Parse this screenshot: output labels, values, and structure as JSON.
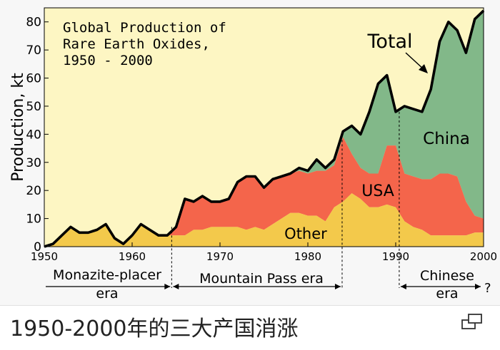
{
  "caption": "1950-2000年的三大产国消涨",
  "colors": {
    "background": "#fdf6c3",
    "other": "#f3c94b",
    "usa": "#f4654b",
    "china": "#82b889",
    "total_line": "#000000"
  },
  "chart_data": {
    "type": "area",
    "title_lines": [
      "Global Production of",
      "Rare Earth Oxides,",
      "1950  -  2000"
    ],
    "xlabel": "",
    "ylabel": "Production, kt",
    "xlim": [
      1950,
      2000
    ],
    "ylim": [
      0,
      85
    ],
    "xticks": [
      1950,
      1960,
      1970,
      1980,
      1990,
      2000
    ],
    "xtick_labels": [
      "1950",
      "1960",
      "1970",
      "1980",
      "1990",
      "2000"
    ],
    "yticks": [
      0,
      10,
      20,
      30,
      40,
      50,
      60,
      70,
      80
    ],
    "ytick_labels": [
      "0",
      "10",
      "20",
      "30",
      "40",
      "50",
      "60",
      "70",
      "80"
    ],
    "x": [
      1950,
      1951,
      1952,
      1953,
      1954,
      1955,
      1956,
      1957,
      1958,
      1959,
      1960,
      1961,
      1962,
      1963,
      1964,
      1965,
      1966,
      1967,
      1968,
      1969,
      1970,
      1971,
      1972,
      1973,
      1974,
      1975,
      1976,
      1977,
      1978,
      1979,
      1980,
      1981,
      1982,
      1983,
      1984,
      1985,
      1986,
      1987,
      1988,
      1989,
      1990,
      1991,
      1992,
      1993,
      1994,
      1995,
      1996,
      1997,
      1998,
      1999,
      2000
    ],
    "series": [
      {
        "name": "Other",
        "label": "Other",
        "values": [
          0,
          1,
          4,
          7,
          5,
          5,
          6,
          8,
          3,
          1,
          4,
          8,
          6,
          4,
          4,
          4,
          4,
          6,
          6,
          7,
          7,
          7,
          7,
          6,
          7,
          6,
          8,
          10,
          12,
          12,
          11,
          11,
          9,
          14,
          16,
          19,
          17,
          14,
          14,
          15,
          14,
          9,
          7,
          6,
          4,
          4,
          4,
          4,
          4,
          5,
          5
        ]
      },
      {
        "name": "USA",
        "label": "USA",
        "values": [
          0,
          0,
          0,
          0,
          0,
          0,
          0,
          0,
          0,
          0,
          0,
          0,
          0,
          0,
          0,
          3,
          13,
          10,
          12,
          9,
          9,
          10,
          16,
          19,
          18,
          15,
          16,
          15,
          14,
          15,
          15,
          16,
          18,
          15,
          23,
          14,
          11,
          12,
          12,
          21,
          22,
          17,
          18,
          18,
          20,
          22,
          22,
          21,
          12,
          6,
          5
        ]
      },
      {
        "name": "China",
        "label": "China",
        "values": [
          0,
          0,
          0,
          0,
          0,
          0,
          0,
          0,
          0,
          0,
          0,
          0,
          0,
          0,
          0,
          0,
          0,
          0,
          0,
          0,
          0,
          0,
          0,
          0,
          0,
          0,
          0,
          0,
          0,
          1,
          1,
          4,
          1,
          2,
          2,
          10,
          12,
          22,
          32,
          25,
          12,
          24,
          24,
          24,
          32,
          47,
          54,
          52,
          53,
          70,
          74
        ]
      }
    ],
    "total": {
      "label": "Total",
      "values": [
        0,
        1,
        4,
        7,
        5,
        5,
        6,
        8,
        3,
        1,
        4,
        8,
        6,
        4,
        4,
        7,
        17,
        16,
        18,
        16,
        16,
        17,
        23,
        25,
        25,
        21,
        24,
        25,
        26,
        28,
        27,
        31,
        28,
        31,
        41,
        43,
        40,
        48,
        58,
        61,
        48,
        50,
        49,
        48,
        56,
        73,
        80,
        77,
        69,
        81,
        84
      ]
    },
    "eras": [
      {
        "label": "Monazite-placer era",
        "lines": [
          "Monazite-placer",
          "era"
        ],
        "start": 1950,
        "end": 1964.5
      },
      {
        "label": "Mountain Pass era",
        "lines": [
          "Mountain Pass era"
        ],
        "start": 1964.5,
        "end": 1983.9
      },
      {
        "label": "Chinese era ?",
        "lines": [
          "Chinese",
          "era"
        ],
        "start": 1990.4,
        "end": 2000,
        "suffix": "?"
      }
    ],
    "era_boundaries": [
      1964.5,
      1983.9,
      1990.4
    ]
  }
}
